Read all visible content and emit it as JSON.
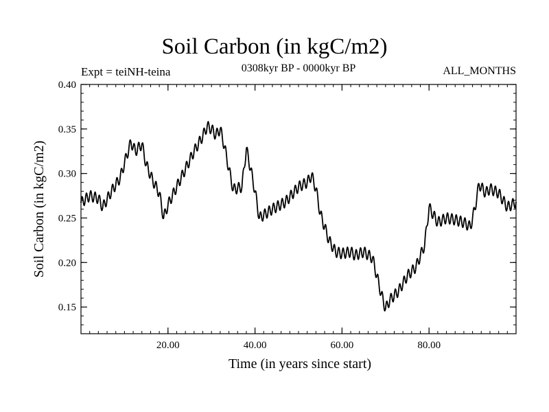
{
  "header": {
    "title": "Soil Carbon (in kgC/m2)",
    "experiment": "Expt = teiNH-teina",
    "period": "0308kyr BP - 0000kyr BP",
    "season": "ALL_MONTHS"
  },
  "chart_data": {
    "type": "line",
    "title": "Soil Carbon (in kgC/m2)",
    "xlabel": "Time (in years since start)",
    "ylabel": "Soil Carbon (in kgC/m2)",
    "xlim": [
      0,
      100
    ],
    "ylim": [
      0.12,
      0.4
    ],
    "xticks": [
      20,
      40,
      60,
      80
    ],
    "xtick_labels": [
      "20.00",
      "40.00",
      "60.00",
      "80.00"
    ],
    "yticks": [
      0.15,
      0.2,
      0.25,
      0.3,
      0.35,
      0.4
    ],
    "ytick_labels": [
      "0.15",
      "0.20",
      "0.25",
      "0.30",
      "0.35",
      "0.40"
    ],
    "grid": false,
    "seasonal_amplitude": 0.006,
    "samples_per_year": 12,
    "series": [
      {
        "name": "Soil Carbon",
        "color": "#000000",
        "x": [
          0,
          2,
          4,
          5,
          7,
          9,
          10.5,
          11.5,
          12.5,
          14,
          15,
          16.5,
          18,
          19,
          20,
          22,
          24,
          26,
          28,
          29,
          30,
          31,
          32,
          33,
          34,
          35,
          37,
          38,
          39,
          40,
          41,
          44,
          47,
          50,
          52,
          53,
          54,
          55,
          57,
          58.5,
          60,
          62,
          63,
          65,
          67,
          68,
          69,
          70,
          71,
          73,
          75,
          77,
          79,
          80,
          82,
          84,
          86,
          88,
          89.5,
          90.5,
          91.5,
          93,
          94,
          96,
          98,
          100
        ],
        "y": [
          0.267,
          0.275,
          0.272,
          0.262,
          0.28,
          0.295,
          0.32,
          0.335,
          0.325,
          0.333,
          0.31,
          0.292,
          0.278,
          0.25,
          0.265,
          0.285,
          0.305,
          0.325,
          0.342,
          0.353,
          0.35,
          0.343,
          0.35,
          0.33,
          0.305,
          0.282,
          0.285,
          0.328,
          0.305,
          0.28,
          0.25,
          0.26,
          0.268,
          0.285,
          0.29,
          0.298,
          0.283,
          0.255,
          0.225,
          0.212,
          0.21,
          0.212,
          0.208,
          0.212,
          0.205,
          0.185,
          0.165,
          0.148,
          0.158,
          0.168,
          0.185,
          0.195,
          0.22,
          0.262,
          0.245,
          0.25,
          0.248,
          0.245,
          0.24,
          0.26,
          0.288,
          0.278,
          0.283,
          0.278,
          0.262,
          0.268
        ]
      }
    ]
  }
}
